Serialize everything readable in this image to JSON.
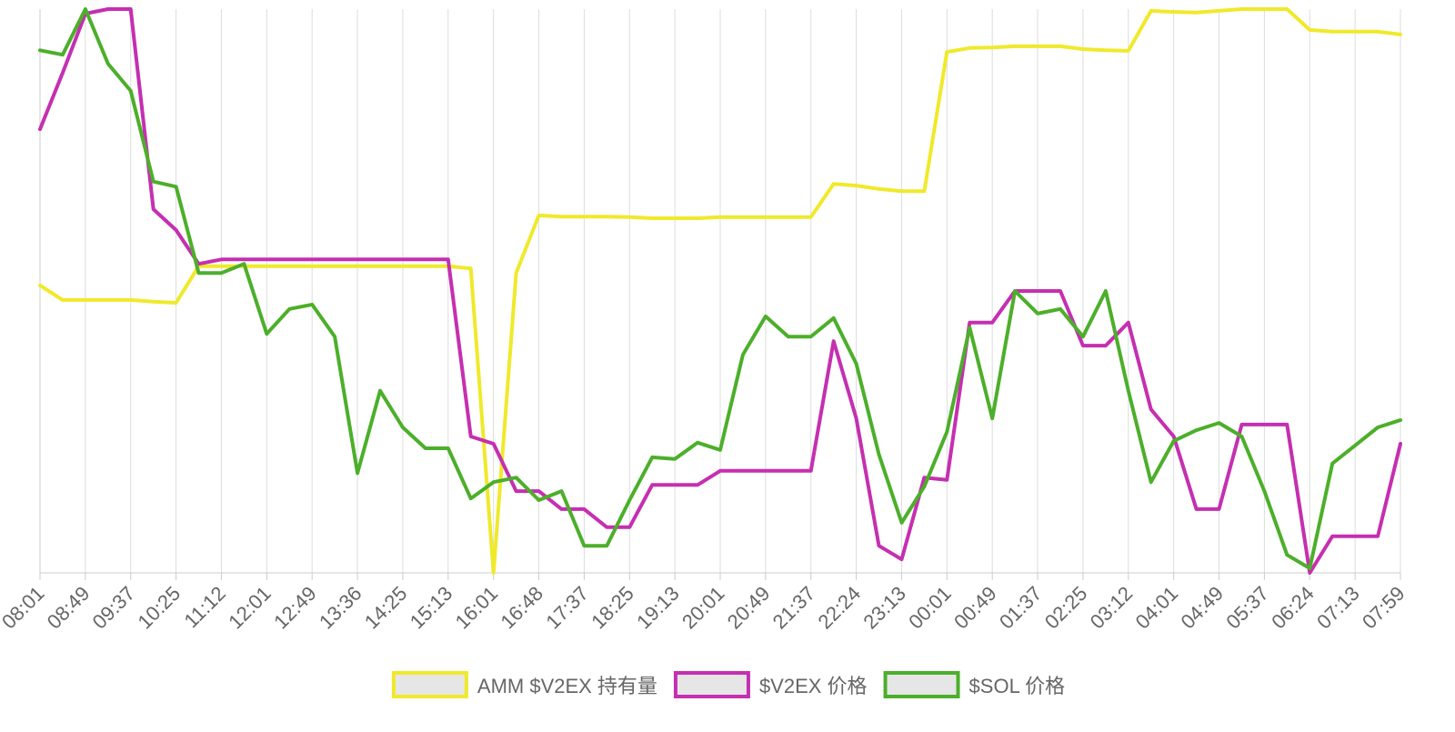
{
  "chart_data": {
    "type": "line",
    "categories": [
      "08:01",
      null,
      "08:49",
      null,
      "09:37",
      null,
      "10:25",
      null,
      "11:12",
      null,
      "12:01",
      null,
      "12:49",
      null,
      "13:36",
      null,
      "14:25",
      null,
      "15:13",
      null,
      "16:01",
      null,
      "16:48",
      null,
      "17:37",
      null,
      "18:25",
      null,
      "19:13",
      null,
      "20:01",
      null,
      "20:49",
      null,
      "21:37",
      null,
      "22:24",
      null,
      "23:13",
      null,
      "00:01",
      null,
      "00:49",
      null,
      "01:37",
      null,
      "02:25",
      null,
      "03:12",
      null,
      "04:01",
      null,
      "04:49",
      null,
      "05:37",
      null,
      "06:24",
      null,
      "07:13",
      null,
      "07:59"
    ],
    "ylim": [
      0,
      100
    ],
    "grid": true,
    "legend": "bottom",
    "series": [
      {
        "name": "AMM $V2EX 持有量",
        "color": "#f0e92b",
        "values": [
          51,
          48.4,
          48.4,
          48.4,
          48.4,
          48.1,
          47.9,
          54.4,
          54.4,
          54.4,
          54.4,
          54.4,
          54.4,
          54.4,
          54.4,
          54.4,
          54.4,
          54.4,
          54.4,
          54,
          0,
          53.2,
          63.4,
          63.2,
          63.2,
          63.2,
          63.1,
          62.9,
          62.9,
          62.9,
          63.1,
          63.1,
          63.1,
          63.1,
          63.1,
          69,
          68.7,
          68.1,
          67.7,
          67.7,
          92.4,
          93.1,
          93.2,
          93.4,
          93.4,
          93.4,
          92.9,
          92.7,
          92.6,
          99.7,
          99.5,
          99.4,
          99.7,
          100,
          100,
          100,
          96.3,
          96,
          96,
          96,
          95.5
        ]
      },
      {
        "name": "$V2EX 价格",
        "color": "#c52fb0",
        "values": [
          78.7,
          88.7,
          99.2,
          100,
          100,
          64.5,
          60.8,
          54.8,
          55.6,
          55.6,
          55.6,
          55.6,
          55.6,
          55.6,
          55.6,
          55.6,
          55.6,
          55.6,
          55.6,
          24.2,
          22.9,
          14.5,
          14.5,
          11.3,
          11.3,
          8.1,
          8.1,
          15.6,
          15.6,
          15.6,
          18.1,
          18.1,
          18.1,
          18.1,
          18.1,
          41.1,
          27.4,
          4.8,
          2.4,
          16.9,
          16.5,
          44.4,
          44.4,
          50,
          50,
          50,
          40.3,
          40.3,
          44.4,
          29,
          24.2,
          11.3,
          11.3,
          26.3,
          26.3,
          26.3,
          0,
          6.5,
          6.5,
          6.5,
          22.9
        ]
      },
      {
        "name": "$SOL 价格",
        "color": "#4caf2a",
        "values": [
          92.7,
          91.9,
          100,
          90.3,
          85.5,
          69.4,
          68.5,
          53.2,
          53.2,
          54.8,
          42.4,
          46.8,
          47.6,
          41.9,
          17.7,
          32.3,
          25.8,
          22.1,
          22.1,
          13.2,
          16.1,
          16.9,
          12.9,
          14.5,
          4.8,
          4.8,
          12.9,
          20.5,
          20.2,
          23.1,
          21.8,
          38.7,
          45.5,
          41.9,
          41.9,
          45.2,
          37.1,
          21,
          8.9,
          15.3,
          25,
          43.5,
          27.4,
          50,
          46,
          46.8,
          41.9,
          50,
          32.3,
          16.1,
          23.4,
          25.3,
          26.6,
          24.2,
          14.5,
          3.2,
          0.8,
          19.4,
          22.6,
          25.8,
          27.1
        ]
      }
    ]
  }
}
